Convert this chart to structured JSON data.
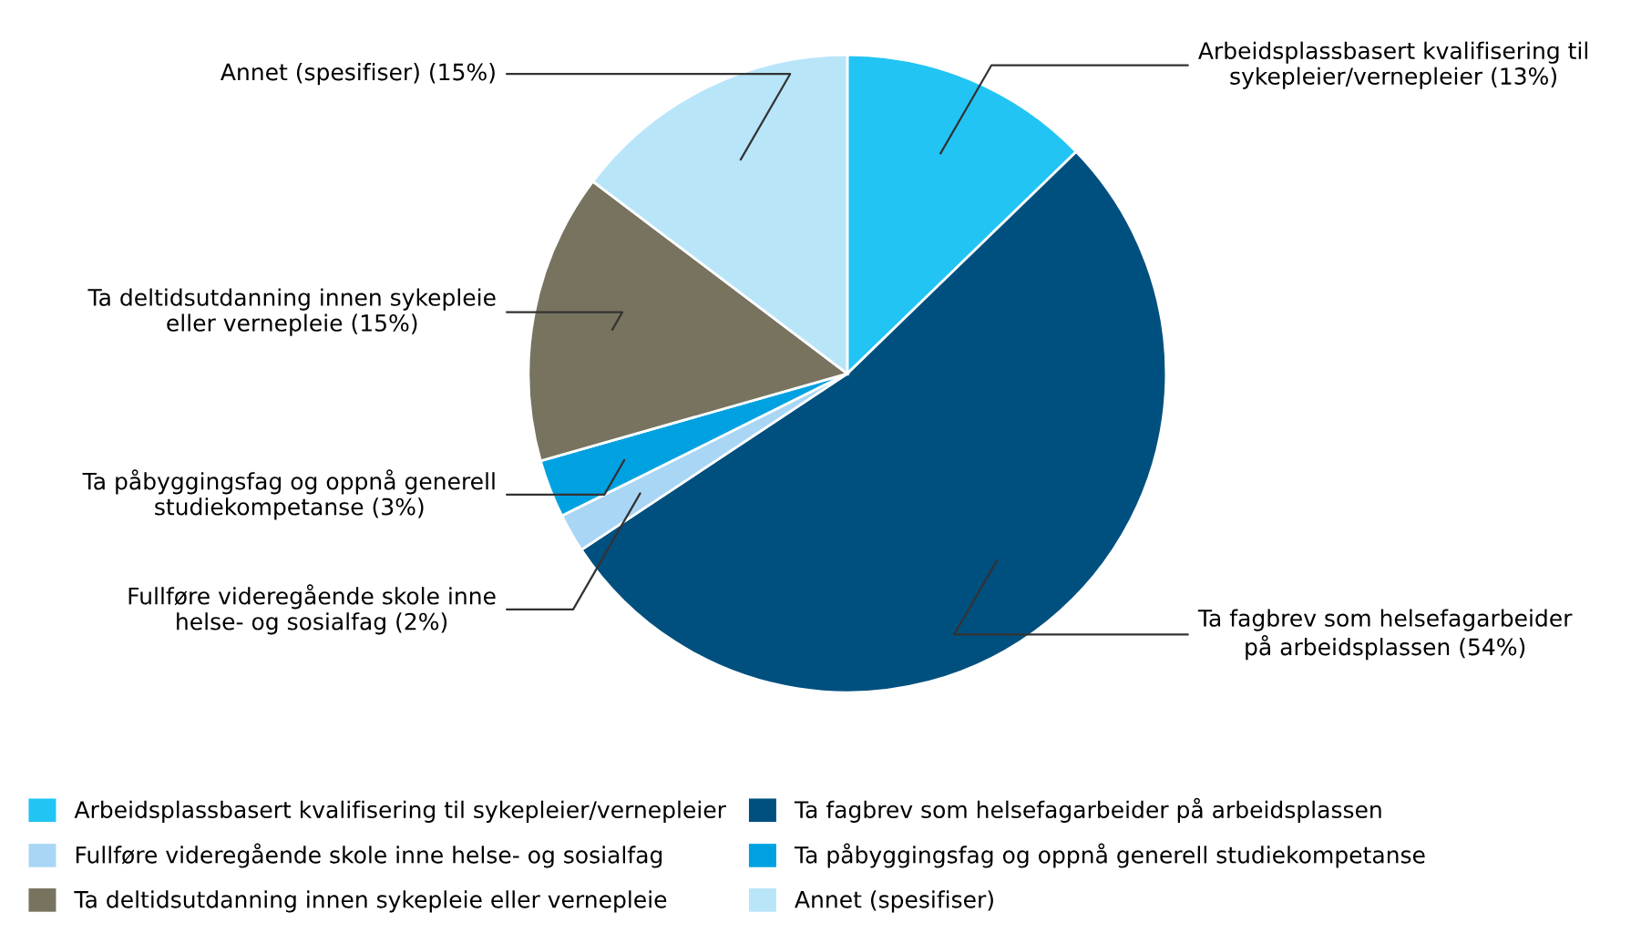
{
  "chart_data": {
    "type": "pie",
    "categories": [
      "Arbeidsplassbasert kvalifisering til sykepleier/vernepleier",
      "Ta fagbrev som helsefagarbeider på arbeidsplassen",
      "Fullføre videregående skole inne helse- og sosialfag",
      "Ta påbyggingsfag og oppnå generell studiekompetanse",
      "Ta deltidsutdanning innen sykepleie eller vernepleie",
      "Annet (spesifiser)"
    ],
    "values": [
      13,
      54,
      2,
      3,
      15,
      15
    ],
    "value_labels": [
      "(13%)",
      "(54%)",
      "(2%)",
      "(3%)",
      "(15%)",
      "(15%)"
    ],
    "colors": [
      "#22c4f4",
      "#00507f",
      "#a9d6f5",
      "#00a1e1",
      "#77735f",
      "#b9e5f9"
    ],
    "legend": "bottom"
  }
}
